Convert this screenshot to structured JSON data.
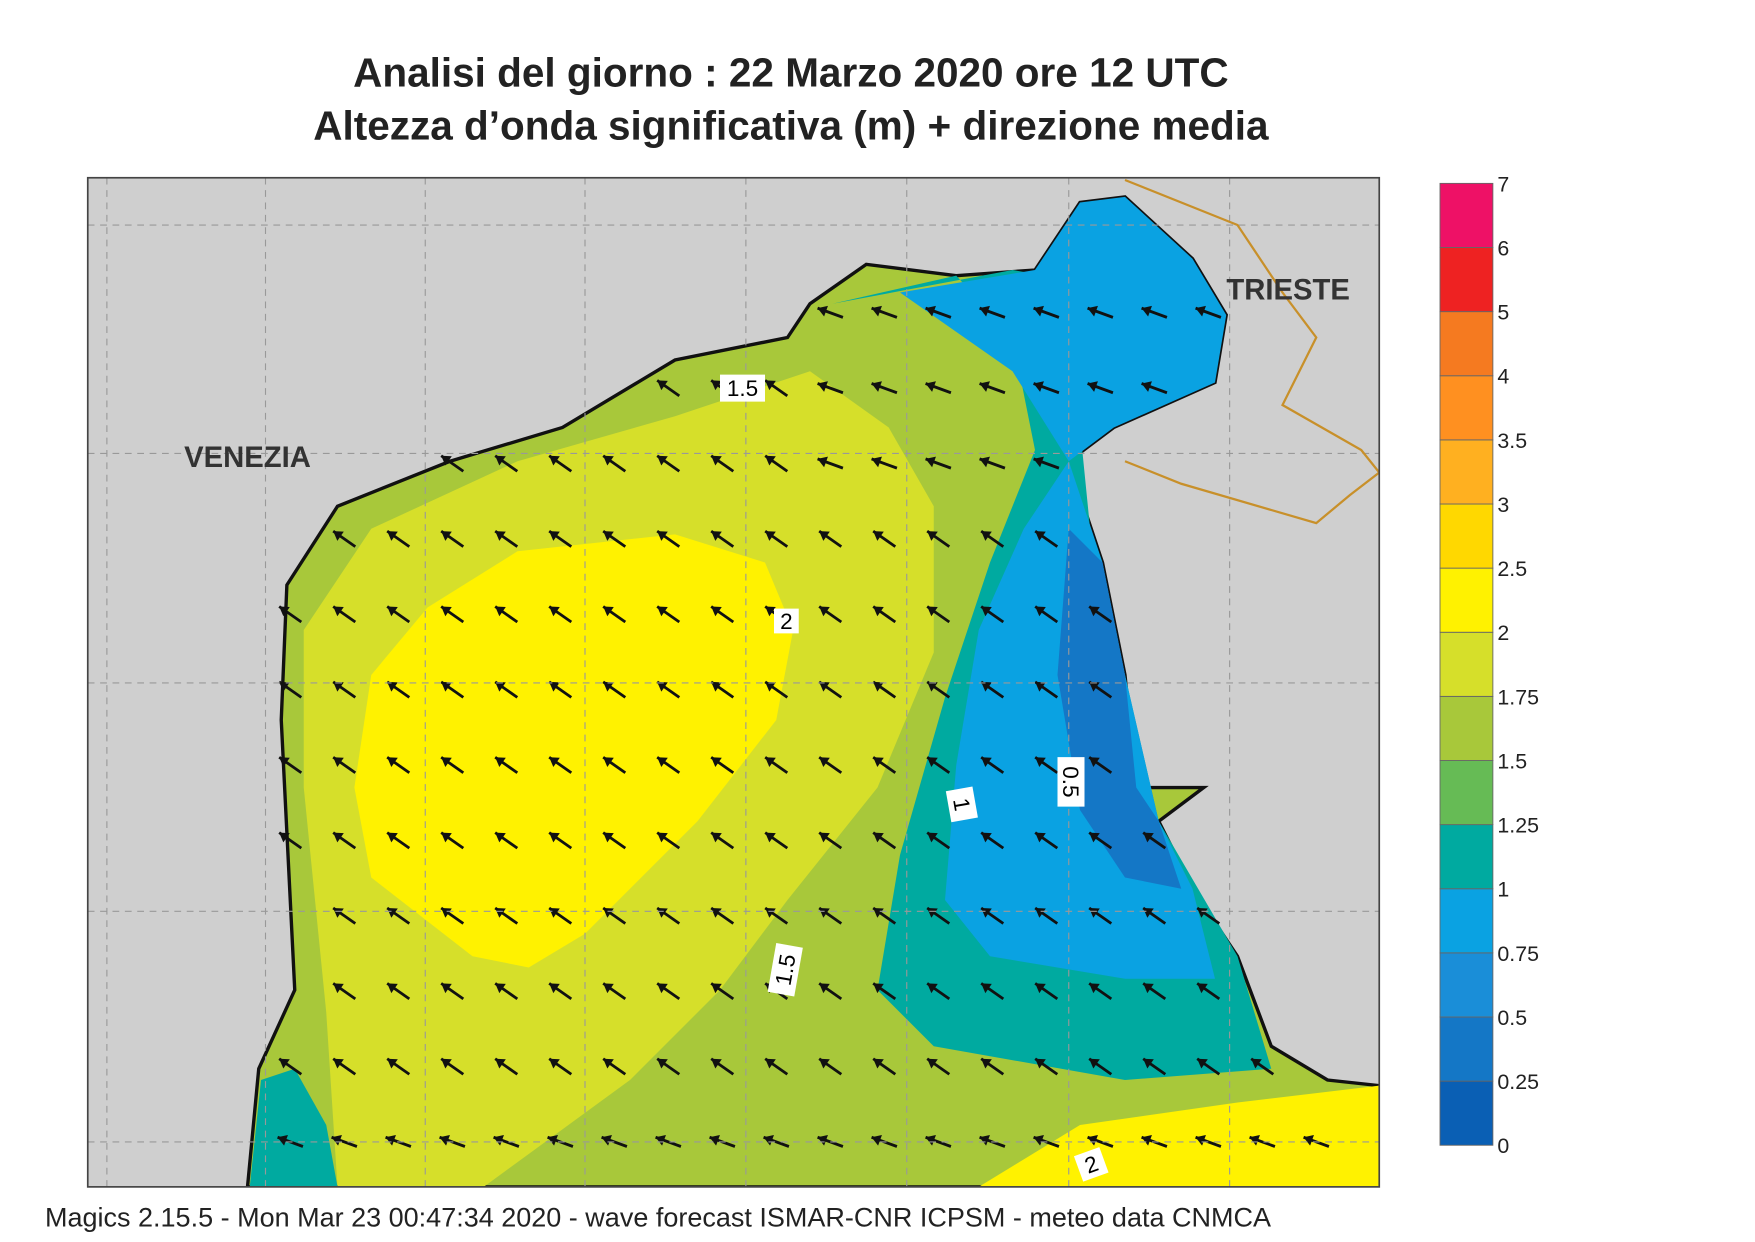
{
  "title": [
    "Analisi del giorno :  22   Marzo   2020   ore 12 UTC",
    "Altezza d’onda significativa (m) + direzione media"
  ],
  "places": [
    "VENEZIA",
    "TRIESTE"
  ],
  "contour_labels": [
    "1.5",
    "2",
    "1",
    "0.5",
    "1.5",
    "2"
  ],
  "legend": {
    "levels": [
      "0",
      "0.25",
      "0.5",
      "0.75",
      "1",
      "1.25",
      "1.5",
      "1.75",
      "2",
      "2.5",
      "3",
      "3.5",
      "4",
      "5",
      "6",
      "7"
    ],
    "colors": [
      "#0a5fb4",
      "#1477c6",
      "#1a8ed8",
      "#0aa2e2",
      "#00aaa0",
      "#66bb55",
      "#a8c83a",
      "#d6df2a",
      "#fff200",
      "#ffd800",
      "#ffb020",
      "#ff9020",
      "#f57a20",
      "#ee2222",
      "#ee1166"
    ]
  },
  "footer": "Magics 2.15.5 - Mon Mar 23 00:47:34 2020 - wave forecast  ISMAR-CNR  ICPSM - meteo data   CNMCA"
}
